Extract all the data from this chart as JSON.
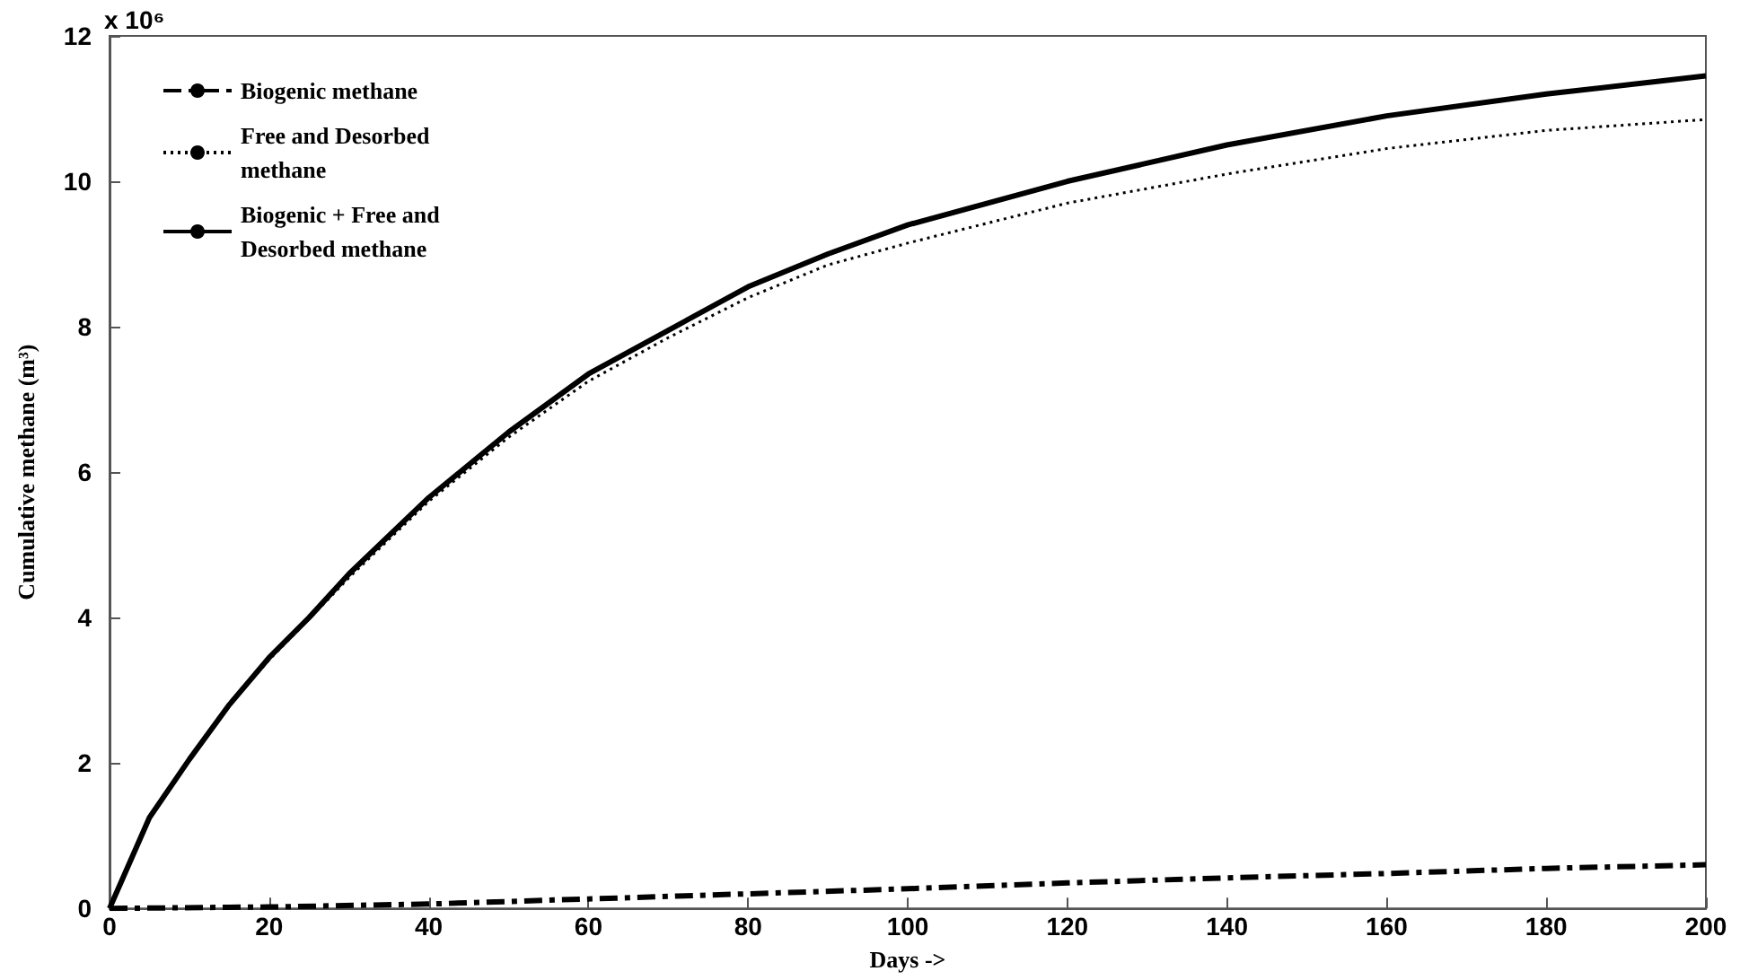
{
  "chart_data": {
    "type": "line",
    "xlabel": "Days ->",
    "ylabel": "Cumulative methane (m³)",
    "annotations": [
      "x 10⁶"
    ],
    "xlim": [
      0,
      200
    ],
    "xticks": [
      0,
      20,
      40,
      60,
      80,
      100,
      120,
      140,
      160,
      180,
      200
    ],
    "ylim": [
      0,
      12
    ],
    "yticks": [
      0,
      2,
      4,
      6,
      8,
      10,
      12
    ],
    "grid": false,
    "legend": "top left",
    "marker": "none",
    "series": [
      {
        "name": "Biogenic methane",
        "color": "#000000",
        "line_style": "dashed",
        "x": [
          0,
          20,
          40,
          60,
          80,
          100,
          120,
          140,
          160,
          180,
          200
        ],
        "values": [
          0,
          0.02,
          0.06,
          0.13,
          0.2,
          0.27,
          0.35,
          0.42,
          0.48,
          0.55,
          0.6
        ]
      },
      {
        "name": "Free and Desorbed methane",
        "color": "#000000",
        "line_style": "dotted",
        "x": [
          0,
          5,
          10,
          15,
          20,
          25,
          30,
          40,
          50,
          60,
          70,
          80,
          90,
          100,
          120,
          140,
          160,
          180,
          200
        ],
        "values": [
          0,
          1.25,
          2.05,
          2.8,
          3.42,
          3.98,
          4.55,
          5.6,
          6.48,
          7.25,
          7.85,
          8.4,
          8.85,
          9.15,
          9.7,
          10.1,
          10.45,
          10.7,
          10.85
        ]
      },
      {
        "name": "Biogenic + Free and Desorbed methane",
        "color": "#000000",
        "line_style": "solid",
        "x": [
          0,
          5,
          10,
          15,
          20,
          25,
          30,
          40,
          50,
          60,
          70,
          80,
          90,
          100,
          120,
          140,
          160,
          180,
          200
        ],
        "values": [
          0,
          1.25,
          2.05,
          2.8,
          3.45,
          4.0,
          4.6,
          5.65,
          6.55,
          7.35,
          7.95,
          8.55,
          9.0,
          9.4,
          10.0,
          10.5,
          10.9,
          11.2,
          11.45
        ]
      }
    ]
  }
}
